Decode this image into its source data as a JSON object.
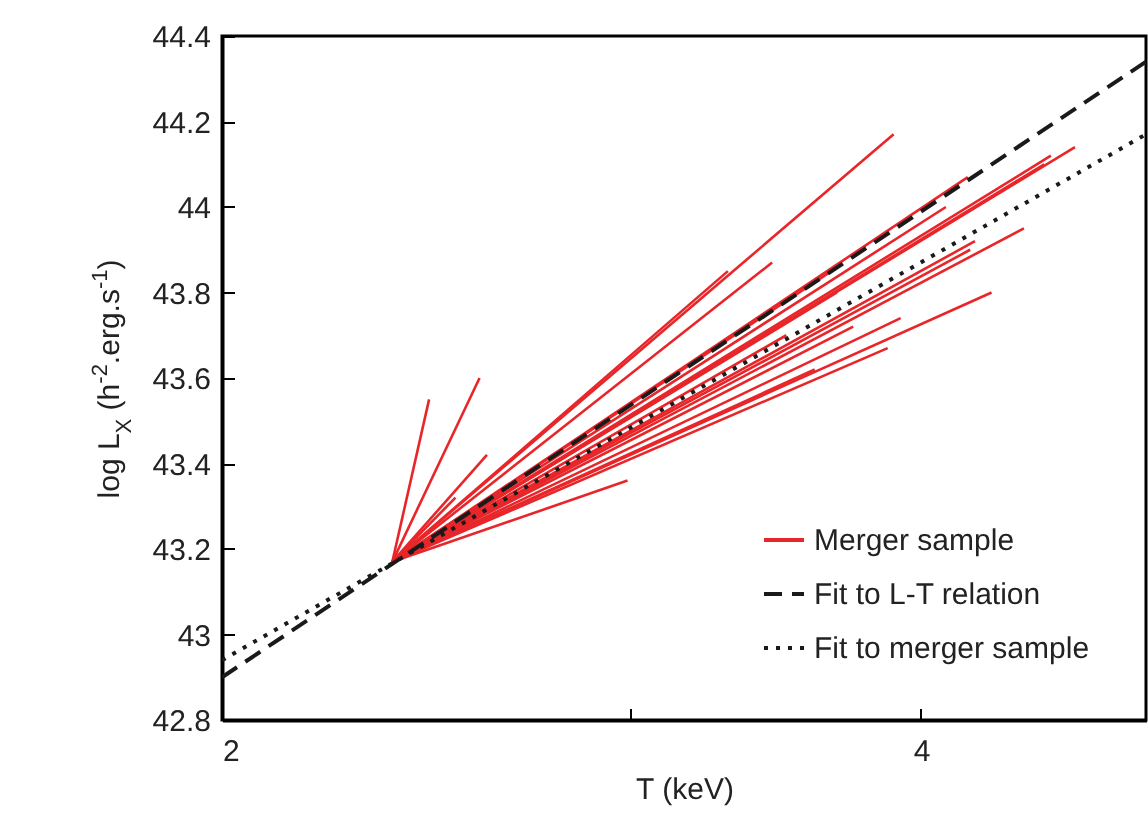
{
  "chart_data": {
    "type": "line",
    "xlabel": "T (keV)",
    "ylabel": "log L$_{X}$ (h$^{-2}$.erg.s$^{-1}$)",
    "log": "x",
    "xlim": [
      2,
      5
    ],
    "ylim": [
      42.8,
      44.4
    ],
    "xticks": [
      2,
      {
        "value": 3,
        "label": null
      },
      4
    ],
    "yticks": [
      42.8,
      43,
      43.2,
      43.4,
      43.6,
      43.8,
      44,
      44.2,
      44.4
    ],
    "grid": false,
    "legend": "bottom right",
    "marker": "none",
    "series": [
      {
        "name": "Merger sample",
        "color": "#e8262a",
        "x": [
          2.368,
          3.893
        ],
        "values": [
          43.17,
          44.17
        ]
      },
      {
        "color": "#e8262a",
        "x": [
          2.368,
          2.456
        ],
        "values": [
          43.17,
          43.55
        ]
      },
      {
        "color": "#e8262a",
        "x": [
          2.368,
          2.582
        ],
        "values": [
          43.17,
          43.6
        ]
      },
      {
        "color": "#e8262a",
        "x": [
          2.368,
          2.601
        ],
        "values": [
          43.17,
          43.42
        ]
      },
      {
        "color": "#e8262a",
        "x": [
          2.368,
          2.521
        ],
        "values": [
          43.17,
          43.32
        ]
      },
      {
        "color": "#e8262a",
        "x": [
          2.368,
          2.99
        ],
        "values": [
          43.17,
          43.36
        ]
      },
      {
        "color": "#e8262a",
        "x": [
          2.368,
          3.451
        ],
        "values": [
          43.17,
          43.87
        ]
      },
      {
        "color": "#e8262a",
        "x": [
          2.368,
          3.303
        ],
        "values": [
          43.17,
          43.85
        ]
      },
      {
        "color": "#e8262a",
        "x": [
          2.368,
          4.19
        ],
        "values": [
          43.17,
          44.07
        ]
      },
      {
        "color": "#e8262a",
        "x": [
          2.368,
          4.66
        ],
        "values": [
          43.17,
          44.14
        ]
      },
      {
        "color": "#e8262a",
        "x": [
          2.368,
          4.55
        ],
        "values": [
          43.17,
          44.12
        ]
      },
      {
        "color": "#e8262a",
        "x": [
          2.368,
          4.52
        ],
        "values": [
          43.17,
          44.1
        ]
      },
      {
        "color": "#e8262a",
        "x": [
          2.368,
          4.43
        ],
        "values": [
          43.17,
          43.95
        ]
      },
      {
        "color": "#e8262a",
        "x": [
          2.368,
          4.22
        ],
        "values": [
          43.17,
          43.92
        ]
      },
      {
        "color": "#e8262a",
        "x": [
          2.368,
          4.2
        ],
        "values": [
          43.17,
          43.9
        ]
      },
      {
        "color": "#e8262a",
        "x": [
          2.368,
          4.29
        ],
        "values": [
          43.17,
          43.8
        ]
      },
      {
        "color": "#e8262a",
        "x": [
          2.368,
          3.92
        ],
        "values": [
          43.17,
          43.74
        ]
      },
      {
        "color": "#e8262a",
        "x": [
          2.368,
          3.87
        ],
        "values": [
          43.17,
          43.67
        ]
      },
      {
        "color": "#e8262a",
        "x": [
          2.368,
          3.74
        ],
        "values": [
          43.17,
          43.72
        ]
      },
      {
        "color": "#e8262a",
        "x": [
          2.368,
          3.68
        ],
        "values": [
          43.17,
          43.8
        ]
      },
      {
        "color": "#e8262a",
        "x": [
          2.368,
          3.66
        ],
        "values": [
          43.17,
          43.85
        ]
      },
      {
        "color": "#e8262a",
        "x": [
          2.368,
          4.1
        ],
        "values": [
          43.17,
          44
        ]
      },
      {
        "color": "#e8262a",
        "x": [
          2.368,
          3.5
        ],
        "values": [
          43.17,
          43.7
        ]
      },
      {
        "color": "#e8262a",
        "x": [
          2.368,
          3.6
        ],
        "values": [
          43.17,
          43.62
        ]
      },
      {
        "name": "Fit to L-T relation",
        "color": "#1a1a1a",
        "line_style": "dashed",
        "x": [
          2,
          5
        ],
        "values": [
          42.9,
          44.34
        ]
      },
      {
        "name": "Fit to merger sample",
        "color": "#1a1a1a",
        "line_style": "dotted",
        "x": [
          2,
          5
        ],
        "values": [
          42.94,
          44.17
        ]
      }
    ]
  }
}
